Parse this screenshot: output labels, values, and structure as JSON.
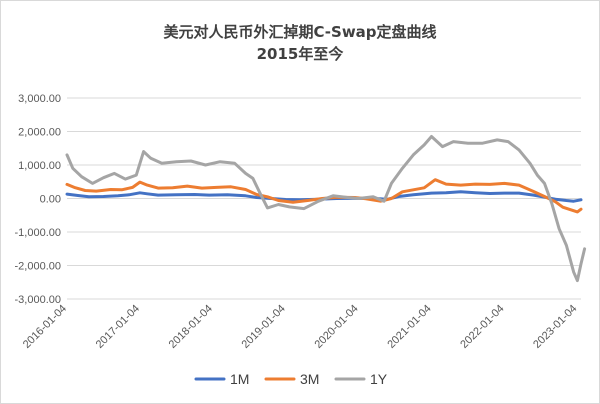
{
  "chart_data": {
    "type": "line",
    "title": "美元对人民币外汇掉期C-Swap定盘曲线",
    "subtitle": "2015年至今",
    "xlabel": "",
    "ylabel": "",
    "ylim": [
      -3000,
      3000
    ],
    "yticks": [
      3000,
      2000,
      1000,
      0,
      -1000,
      -2000,
      -3000
    ],
    "ytick_labels": [
      "3,000.00",
      "2,000.00",
      "1,000.00",
      "0.00",
      "-1,000.00",
      "-2,000.00",
      "-3,000.00"
    ],
    "xlim": [
      2016.0,
      2023.05
    ],
    "xtick_labels": [
      "2016-01-04",
      "2017-01-04",
      "2018-01-04",
      "2019-01-04",
      "2020-01-04",
      "2021-01-04",
      "2022-01-04",
      "2023-01-04"
    ],
    "xtick_values": [
      2016.0,
      2017.0,
      2018.0,
      2019.0,
      2020.0,
      2021.0,
      2022.0,
      2023.0
    ],
    "grid": true,
    "legend_position": "bottom",
    "series": [
      {
        "name": "1M",
        "color": "#4472C4",
        "points": [
          [
            2016.0,
            130
          ],
          [
            2016.15,
            90
          ],
          [
            2016.3,
            50
          ],
          [
            2016.5,
            60
          ],
          [
            2016.7,
            80
          ],
          [
            2016.85,
            110
          ],
          [
            2017.0,
            170
          ],
          [
            2017.1,
            140
          ],
          [
            2017.25,
            100
          ],
          [
            2017.5,
            110
          ],
          [
            2017.75,
            120
          ],
          [
            2017.95,
            100
          ],
          [
            2018.2,
            110
          ],
          [
            2018.45,
            80
          ],
          [
            2018.6,
            30
          ],
          [
            2018.75,
            10
          ],
          [
            2019.0,
            -30
          ],
          [
            2019.2,
            -40
          ],
          [
            2019.45,
            -20
          ],
          [
            2019.7,
            0
          ],
          [
            2019.95,
            10
          ],
          [
            2020.2,
            0
          ],
          [
            2020.4,
            -20
          ],
          [
            2020.55,
            60
          ],
          [
            2020.75,
            110
          ],
          [
            2021.0,
            160
          ],
          [
            2021.2,
            170
          ],
          [
            2021.4,
            200
          ],
          [
            2021.6,
            170
          ],
          [
            2021.8,
            150
          ],
          [
            2022.0,
            160
          ],
          [
            2022.2,
            160
          ],
          [
            2022.4,
            100
          ],
          [
            2022.55,
            40
          ],
          [
            2022.7,
            -20
          ],
          [
            2022.85,
            -60
          ],
          [
            2022.95,
            -80
          ],
          [
            2023.05,
            -40
          ]
        ]
      },
      {
        "name": "3M",
        "color": "#ED7D31",
        "points": [
          [
            2016.0,
            420
          ],
          [
            2016.1,
            330
          ],
          [
            2016.25,
            240
          ],
          [
            2016.4,
            220
          ],
          [
            2016.6,
            270
          ],
          [
            2016.75,
            260
          ],
          [
            2016.9,
            330
          ],
          [
            2017.0,
            490
          ],
          [
            2017.1,
            400
          ],
          [
            2017.25,
            310
          ],
          [
            2017.45,
            320
          ],
          [
            2017.65,
            370
          ],
          [
            2017.85,
            310
          ],
          [
            2018.05,
            330
          ],
          [
            2018.25,
            350
          ],
          [
            2018.45,
            270
          ],
          [
            2018.6,
            120
          ],
          [
            2018.75,
            50
          ],
          [
            2018.9,
            -60
          ],
          [
            2019.1,
            -110
          ],
          [
            2019.3,
            -60
          ],
          [
            2019.5,
            0
          ],
          [
            2019.7,
            40
          ],
          [
            2019.95,
            30
          ],
          [
            2020.1,
            -10
          ],
          [
            2020.3,
            -80
          ],
          [
            2020.45,
            0
          ],
          [
            2020.6,
            200
          ],
          [
            2020.75,
            260
          ],
          [
            2020.9,
            320
          ],
          [
            2021.05,
            560
          ],
          [
            2021.2,
            430
          ],
          [
            2021.4,
            400
          ],
          [
            2021.6,
            430
          ],
          [
            2021.8,
            420
          ],
          [
            2022.0,
            450
          ],
          [
            2022.2,
            400
          ],
          [
            2022.4,
            210
          ],
          [
            2022.55,
            60
          ],
          [
            2022.7,
            -100
          ],
          [
            2022.8,
            -260
          ],
          [
            2022.9,
            -330
          ],
          [
            2023.0,
            -400
          ],
          [
            2023.05,
            -320
          ]
        ]
      },
      {
        "name": "1Y",
        "color": "#A5A5A5",
        "points": [
          [
            2016.0,
            1300
          ],
          [
            2016.08,
            900
          ],
          [
            2016.2,
            650
          ],
          [
            2016.35,
            450
          ],
          [
            2016.5,
            620
          ],
          [
            2016.65,
            750
          ],
          [
            2016.8,
            580
          ],
          [
            2016.95,
            700
          ],
          [
            2017.05,
            1400
          ],
          [
            2017.15,
            1200
          ],
          [
            2017.3,
            1050
          ],
          [
            2017.5,
            1100
          ],
          [
            2017.7,
            1120
          ],
          [
            2017.9,
            1000
          ],
          [
            2018.1,
            1100
          ],
          [
            2018.3,
            1050
          ],
          [
            2018.45,
            750
          ],
          [
            2018.55,
            600
          ],
          [
            2018.65,
            150
          ],
          [
            2018.75,
            -280
          ],
          [
            2018.9,
            -180
          ],
          [
            2019.05,
            -250
          ],
          [
            2019.25,
            -300
          ],
          [
            2019.45,
            -80
          ],
          [
            2019.65,
            80
          ],
          [
            2019.85,
            30
          ],
          [
            2020.0,
            0
          ],
          [
            2020.2,
            50
          ],
          [
            2020.35,
            -80
          ],
          [
            2020.45,
            450
          ],
          [
            2020.6,
            900
          ],
          [
            2020.75,
            1300
          ],
          [
            2020.9,
            1600
          ],
          [
            2021.0,
            1850
          ],
          [
            2021.15,
            1550
          ],
          [
            2021.3,
            1700
          ],
          [
            2021.5,
            1650
          ],
          [
            2021.7,
            1650
          ],
          [
            2021.9,
            1750
          ],
          [
            2022.05,
            1700
          ],
          [
            2022.2,
            1450
          ],
          [
            2022.35,
            1050
          ],
          [
            2022.45,
            700
          ],
          [
            2022.55,
            450
          ],
          [
            2022.65,
            -150
          ],
          [
            2022.75,
            -900
          ],
          [
            2022.85,
            -1400
          ],
          [
            2022.95,
            -2200
          ],
          [
            2023.0,
            -2450
          ],
          [
            2023.05,
            -1950
          ],
          [
            2023.1,
            -1500
          ]
        ]
      }
    ]
  }
}
